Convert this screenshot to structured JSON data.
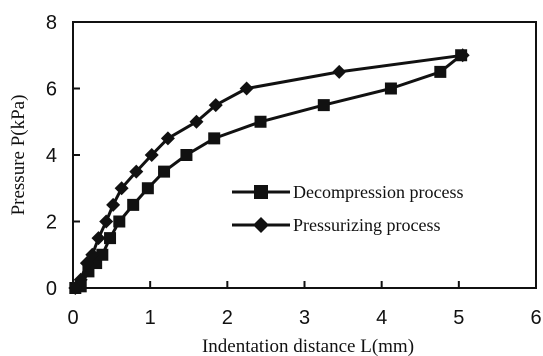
{
  "chart_data": {
    "type": "line",
    "xlabel": "Indentation distance L(mm)",
    "ylabel": "Pressure P(kPa)",
    "xlim": [
      0,
      6
    ],
    "ylim": [
      0,
      8
    ],
    "xticks": [
      "0",
      "1",
      "2",
      "3",
      "4",
      "5",
      "6"
    ],
    "yticks": [
      "0",
      "2",
      "4",
      "6",
      "8"
    ],
    "grid": false,
    "legend_position": "lower-right",
    "series": [
      {
        "name": "Decompression process",
        "marker": "square",
        "color": "#111111",
        "x": [
          0.03,
          0.1,
          0.2,
          0.3,
          0.38,
          0.48,
          0.6,
          0.78,
          0.97,
          1.18,
          1.47,
          1.83,
          2.43,
          3.25,
          4.12,
          4.76,
          5.03
        ],
        "y": [
          0,
          0.05,
          0.5,
          0.75,
          1.0,
          1.5,
          2.0,
          2.5,
          3.0,
          3.5,
          4.0,
          4.5,
          5.0,
          5.5,
          6.0,
          6.5,
          7.0
        ]
      },
      {
        "name": "Pressurizing process",
        "marker": "diamond",
        "color": "#111111",
        "x": [
          0.03,
          0.1,
          0.18,
          0.25,
          0.33,
          0.43,
          0.52,
          0.63,
          0.82,
          1.02,
          1.23,
          1.6,
          1.85,
          2.25,
          3.45,
          5.05
        ],
        "y": [
          0,
          0.25,
          0.75,
          1.0,
          1.5,
          2.0,
          2.5,
          3.0,
          3.5,
          4.0,
          4.5,
          5.0,
          5.5,
          6.0,
          6.5,
          7.0
        ]
      }
    ]
  }
}
